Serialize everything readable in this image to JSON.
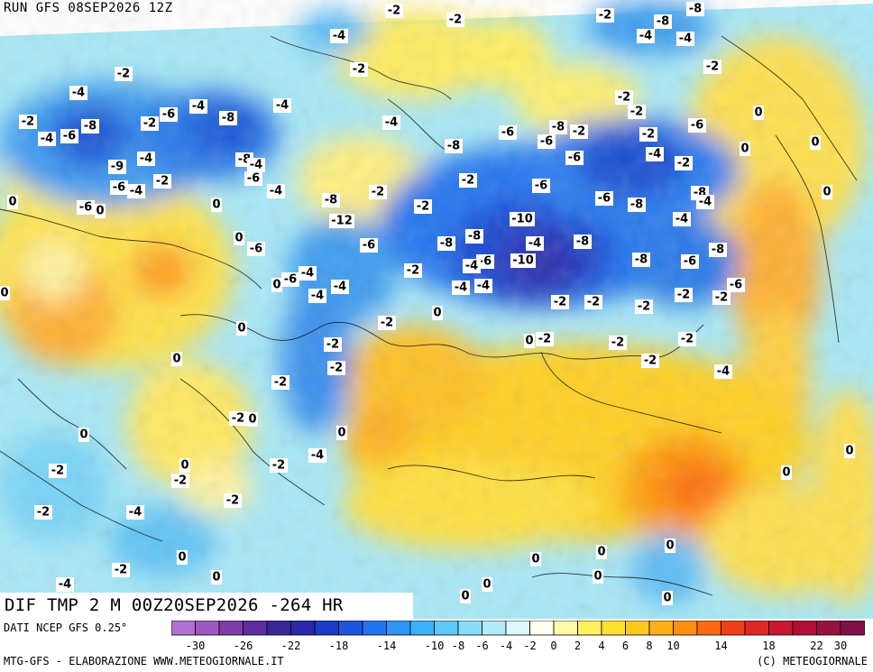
{
  "header": {
    "run_title": "RUN GFS 08SEP2026 12Z"
  },
  "map": {
    "valid_title": "DIF TMP 2 M 00Z20SEP2026 -264 HR",
    "field": "temperature anomaly 2 m",
    "labels": [
      {
        "text": "-2",
        "lon": "w-europe-n",
        "id": 1
      },
      {
        "text": "-2"
      },
      {
        "text": "-8"
      },
      {
        "text": "-8"
      },
      {
        "text": "-4"
      },
      {
        "text": "-4"
      },
      {
        "text": "-2"
      },
      {
        "text": "-4"
      },
      {
        "text": "-2"
      },
      {
        "text": "-2"
      },
      {
        "text": "-2"
      },
      {
        "text": "-6"
      },
      {
        "text": "-8"
      },
      {
        "text": "-4"
      },
      {
        "text": "-6"
      },
      {
        "text": "-2"
      },
      {
        "text": "-4"
      },
      {
        "text": "-10"
      },
      {
        "text": "-12"
      },
      {
        "text": "0"
      },
      {
        "text": "2"
      }
    ]
  },
  "contour_labels": [
    "-2",
    "-2",
    "-8",
    "-8",
    "-2",
    "-4",
    "-4",
    "-4",
    "-2",
    "-2",
    "-2",
    "-4",
    "-2",
    "-4",
    "-2",
    "-4",
    "-6",
    "-8",
    "-2",
    "-2",
    "-6",
    "-4",
    "-6",
    "-2",
    "-8",
    "-6",
    "-6",
    "-4",
    "-8",
    "-2",
    "-8",
    "-4",
    "-9",
    "-4",
    "-6",
    "-4",
    "-2",
    "-6",
    "-8",
    "-6",
    "-4",
    "-6",
    "-2",
    "-2",
    "-2",
    "-4",
    "-8",
    "-8",
    "-6",
    "-8",
    "-4",
    "-6",
    "-2",
    "-4",
    "-10",
    "-12",
    "-8",
    "-8",
    "-4",
    "-8",
    "-6",
    "-6",
    "-8",
    "-10",
    "-6",
    "-8",
    "-6",
    "-4",
    "-2",
    "-4",
    "-6",
    "-4",
    "-4",
    "-6",
    "-4",
    "-2",
    "-2",
    "-2",
    "-4",
    "-2",
    "-2",
    "-2",
    "-2",
    "-2",
    "-2",
    "-2",
    "-2",
    "-2",
    "-4",
    "-2",
    "-2",
    "-4",
    "-2",
    "-2",
    "-2",
    "-2",
    "-4",
    "-2",
    "-2",
    "-4",
    "0",
    "0",
    "0",
    "0",
    "0",
    "0",
    "0",
    "0",
    "0",
    "0",
    "0",
    "0",
    "0",
    "0",
    "0",
    "0",
    "0",
    "0",
    "0",
    "0",
    "0",
    "0",
    "0",
    "0",
    "0",
    "0",
    "0",
    "0",
    "0"
  ],
  "legend": {
    "data_source": "DATI NCEP GFS 0.25°",
    "tick_labels": [
      "-30",
      "-26",
      "-22",
      "-18",
      "-14",
      "-10",
      "-8",
      "-6",
      "-4",
      "-2",
      "0",
      "2",
      "4",
      "6",
      "8",
      "10",
      "14",
      "18",
      "22",
      "30"
    ],
    "colors": [
      "#b070d0",
      "#9c58c0",
      "#7d3ca8",
      "#5a2ea0",
      "#3a2898",
      "#2828a8",
      "#1c3cc8",
      "#1e56e0",
      "#2474f0",
      "#2e94f6",
      "#3cb0f8",
      "#5cc8f8",
      "#88dcf8",
      "#b0ecf8",
      "#ddf8fa",
      "#fffff0",
      "#fff8a8",
      "#fff060",
      "#ffe030",
      "#ffc820",
      "#ffb018",
      "#ff9010",
      "#ff6a10",
      "#f04018",
      "#e02828",
      "#c81830",
      "#b01038",
      "#981040",
      "#801048"
    ]
  },
  "footer": {
    "credit_left": "MTG-GFS - ELABORAZIONE WWW.METEOGIORNALE.IT",
    "credit_right": "(C) METEOGIORNALE"
  }
}
